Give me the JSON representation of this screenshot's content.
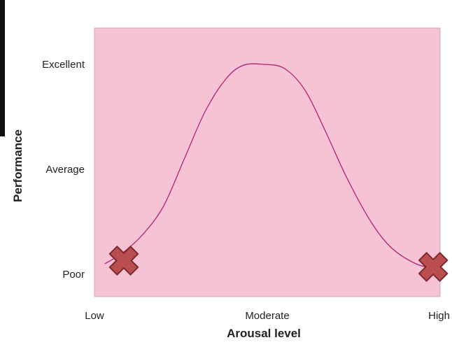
{
  "chart_data": {
    "type": "line",
    "title": "",
    "xlabel": "Arousal level",
    "ylabel": "Performance",
    "x_ticks": [
      {
        "value": 0,
        "label": "Low"
      },
      {
        "value": 0.5,
        "label": "Moderate"
      },
      {
        "value": 1,
        "label": "High"
      }
    ],
    "y_ticks": [
      {
        "value": 0,
        "label": "Poor"
      },
      {
        "value": 1,
        "label": "Average"
      },
      {
        "value": 2,
        "label": "Excellent"
      }
    ],
    "xlim": [
      0,
      1
    ],
    "ylim": [
      -0.2,
      2.3
    ],
    "grid": false,
    "series": [
      {
        "points": [
          [
            0.03,
            0.1
          ],
          [
            0.08,
            0.2
          ],
          [
            0.14,
            0.38
          ],
          [
            0.2,
            0.65
          ],
          [
            0.26,
            1.1
          ],
          [
            0.32,
            1.55
          ],
          [
            0.38,
            1.86
          ],
          [
            0.43,
            1.99
          ],
          [
            0.49,
            2.0
          ],
          [
            0.55,
            1.96
          ],
          [
            0.61,
            1.75
          ],
          [
            0.67,
            1.35
          ],
          [
            0.73,
            0.92
          ],
          [
            0.8,
            0.5
          ],
          [
            0.86,
            0.25
          ],
          [
            0.93,
            0.1
          ],
          [
            0.99,
            0.05
          ]
        ]
      }
    ],
    "markers": [
      {
        "x": 0.085,
        "y": 0.13,
        "shape": "cross"
      },
      {
        "x": 0.98,
        "y": 0.07,
        "shape": "cross"
      }
    ],
    "colors": {
      "plot_background": "#f5c3d3",
      "plot_border": "#c9a0af",
      "line": "#b0227a",
      "marker_fill": "#b94d4f",
      "marker_stroke": "#7d2a2c",
      "text": "#222222"
    }
  }
}
